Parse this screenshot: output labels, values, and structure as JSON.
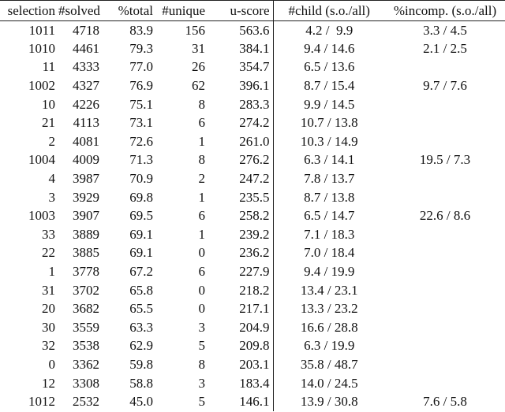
{
  "table": {
    "header": [
      "selection",
      "#solved",
      "%total",
      "#unique",
      "u-score",
      "#child (s.o./all)",
      "%incomp. (s.o./all)"
    ],
    "rows": [
      [
        "1011",
        "4718",
        "83.9",
        "156",
        "563.6",
        "4.2 /  9.9",
        "3.3 / 4.5"
      ],
      [
        "1010",
        "4461",
        "79.3",
        "31",
        "384.1",
        "9.4 / 14.6",
        "2.1 / 2.5"
      ],
      [
        "11",
        "4333",
        "77.0",
        "26",
        "354.7",
        "6.5 / 13.6",
        null
      ],
      [
        "1002",
        "4327",
        "76.9",
        "62",
        "396.1",
        "8.7 / 15.4",
        "9.7 / 7.6"
      ],
      [
        "10",
        "4226",
        "75.1",
        "8",
        "283.3",
        "9.9 / 14.5",
        null
      ],
      [
        "21",
        "4113",
        "73.1",
        "6",
        "274.2",
        "10.7 / 13.8",
        null
      ],
      [
        "2",
        "4081",
        "72.6",
        "1",
        "261.0",
        "10.3 / 14.9",
        null
      ],
      [
        "1004",
        "4009",
        "71.3",
        "8",
        "276.2",
        "6.3 / 14.1",
        "19.5 / 7.3"
      ],
      [
        "4",
        "3987",
        "70.9",
        "2",
        "247.2",
        "7.8 / 13.7",
        null
      ],
      [
        "3",
        "3929",
        "69.8",
        "1",
        "235.5",
        "8.7 / 13.8",
        null
      ],
      [
        "1003",
        "3907",
        "69.5",
        "6",
        "258.2",
        "6.5 / 14.7",
        "22.6 / 8.6"
      ],
      [
        "33",
        "3889",
        "69.1",
        "1",
        "239.2",
        "7.1 / 18.3",
        null
      ],
      [
        "22",
        "3885",
        "69.1",
        "0",
        "236.2",
        "7.0 / 18.4",
        null
      ],
      [
        "1",
        "3778",
        "67.2",
        "6",
        "227.9",
        "9.4 / 19.9",
        null
      ],
      [
        "31",
        "3702",
        "65.8",
        "0",
        "218.2",
        "13.4 / 23.1",
        null
      ],
      [
        "20",
        "3682",
        "65.5",
        "0",
        "217.1",
        "13.3 / 23.2",
        null
      ],
      [
        "30",
        "3559",
        "63.3",
        "3",
        "204.9",
        "16.6 / 28.8",
        null
      ],
      [
        "32",
        "3538",
        "62.9",
        "5",
        "209.8",
        "6.3 / 19.9",
        null
      ],
      [
        "0",
        "3362",
        "59.8",
        "8",
        "203.1",
        "35.8 / 48.7",
        null
      ],
      [
        "12",
        "3308",
        "58.8",
        "3",
        "183.4",
        "14.0 / 24.5",
        null
      ],
      [
        "1012",
        "2532",
        "45.0",
        "5",
        "146.1",
        "13.9 / 30.8",
        "7.6 / 5.8"
      ]
    ]
  }
}
